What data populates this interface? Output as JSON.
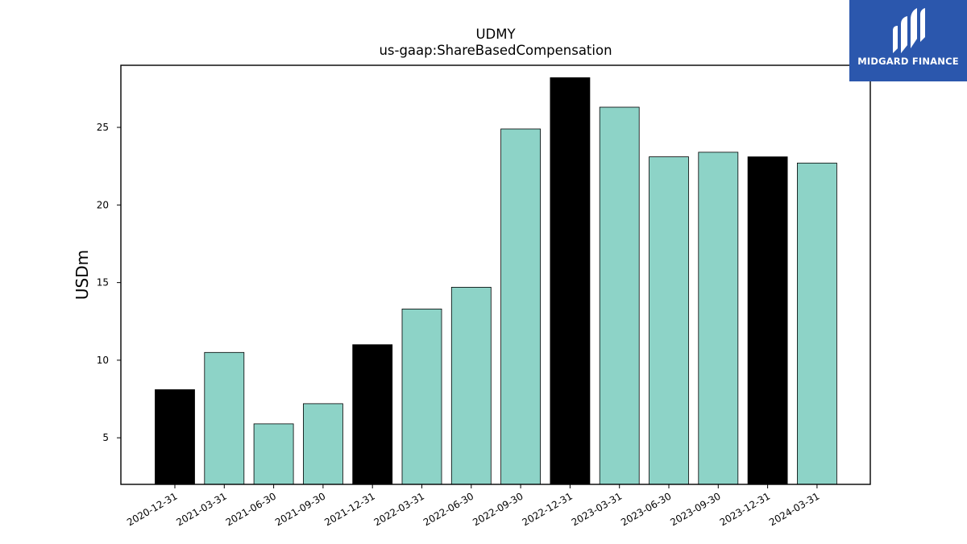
{
  "chart_data": {
    "type": "bar",
    "title": "UDMY",
    "subtitle": "us-gaap:ShareBasedCompensation",
    "xlabel": "",
    "ylabel": "USDm",
    "ylim": [
      2,
      29
    ],
    "yticks": [
      5,
      10,
      15,
      20,
      25
    ],
    "grid": false,
    "categories": [
      "2020-12-31",
      "2021-03-31",
      "2021-06-30",
      "2021-09-30",
      "2021-12-31",
      "2022-03-31",
      "2022-06-30",
      "2022-09-30",
      "2022-12-31",
      "2023-03-31",
      "2023-06-30",
      "2023-09-30",
      "2023-12-31",
      "2024-03-31"
    ],
    "values": [
      8.1,
      10.5,
      5.9,
      7.2,
      11.0,
      13.3,
      14.7,
      24.9,
      28.2,
      26.3,
      23.1,
      23.4,
      23.1,
      22.7
    ],
    "bar_colors": [
      "#000000",
      "#8dd3c7",
      "#8dd3c7",
      "#8dd3c7",
      "#000000",
      "#8dd3c7",
      "#8dd3c7",
      "#8dd3c7",
      "#000000",
      "#8dd3c7",
      "#8dd3c7",
      "#8dd3c7",
      "#000000",
      "#8dd3c7"
    ]
  },
  "logo": {
    "text": "MIDGARD FINANCE",
    "background": "#2b57ad"
  }
}
